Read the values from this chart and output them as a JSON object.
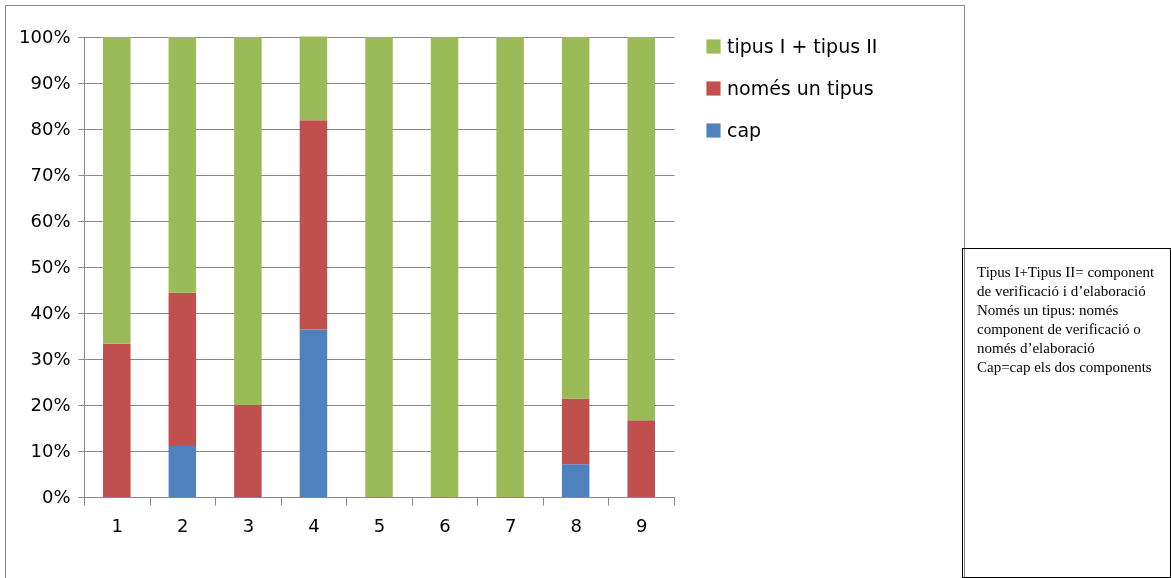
{
  "chart_data": {
    "type": "bar",
    "stacked": true,
    "categories": [
      "1",
      "2",
      "3",
      "4",
      "5",
      "6",
      "7",
      "8",
      "9"
    ],
    "series": [
      {
        "name": "cap",
        "color": "#4f81bd",
        "values": [
          0,
          11.1,
          0,
          36.4,
          0,
          0,
          0,
          7.1,
          0
        ]
      },
      {
        "name": "només un tipus",
        "color": "#c0504d",
        "values": [
          33.3,
          33.3,
          20,
          45.5,
          0,
          0,
          0,
          14.3,
          16.7
        ]
      },
      {
        "name": "tipus I + tipus II",
        "color": "#9bbb59",
        "values": [
          66.7,
          55.6,
          80,
          18.2,
          100,
          100,
          100,
          78.6,
          83.3
        ]
      }
    ],
    "ylim": [
      0,
      100
    ],
    "yticks": [
      {
        "value": 0,
        "label": "0%"
      },
      {
        "value": 10,
        "label": "10%"
      },
      {
        "value": 20,
        "label": "20%"
      },
      {
        "value": 30,
        "label": "30%"
      },
      {
        "value": 40,
        "label": "40%"
      },
      {
        "value": 50,
        "label": "50%"
      },
      {
        "value": 60,
        "label": "60%"
      },
      {
        "value": 70,
        "label": "70%"
      },
      {
        "value": 80,
        "label": "80%"
      },
      {
        "value": 90,
        "label": "90%"
      },
      {
        "value": 100,
        "label": "100%"
      }
    ],
    "grid": "y",
    "legend": "right",
    "annotations": [
      "Tipus I+Tipus II= component de verificació i d’elaboració",
      "Només un tipus: només component de verificació o només d’elaboració",
      "Cap=cap els dos components"
    ]
  }
}
